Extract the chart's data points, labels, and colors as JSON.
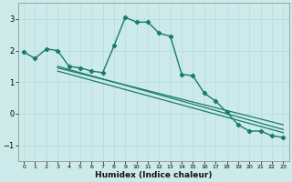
{
  "xlabel": "Humidex (Indice chaleur)",
  "bg_color": "#cceaea",
  "grid_color": "#b0d8d8",
  "line_color": "#1a7a6e",
  "xlim": [
    -0.5,
    23.5
  ],
  "ylim": [
    -1.5,
    3.5
  ],
  "yticks": [
    -1,
    0,
    1,
    2,
    3
  ],
  "xticks": [
    0,
    1,
    2,
    3,
    4,
    5,
    6,
    7,
    8,
    9,
    10,
    11,
    12,
    13,
    14,
    15,
    16,
    17,
    18,
    19,
    20,
    21,
    22,
    23
  ],
  "line1_x": [
    0,
    1,
    2,
    3,
    4,
    5,
    6,
    7,
    8,
    9,
    10,
    11,
    12,
    13,
    14,
    15,
    16,
    17,
    18,
    19,
    20,
    21,
    22,
    23
  ],
  "line1_y": [
    1.95,
    1.75,
    2.05,
    2.0,
    1.5,
    1.45,
    1.35,
    1.3,
    2.15,
    3.05,
    2.9,
    2.9,
    2.55,
    2.45,
    1.25,
    1.2,
    0.65,
    0.4,
    0.05,
    -0.35,
    -0.55,
    -0.55,
    -0.7,
    -0.75
  ],
  "line3_x": [
    3,
    23
  ],
  "line3_y": [
    1.5,
    -0.5
  ],
  "line4_x": [
    3,
    23
  ],
  "line4_y": [
    1.45,
    -0.35
  ],
  "line5_x": [
    3,
    23
  ],
  "line5_y": [
    1.35,
    -0.6
  ]
}
